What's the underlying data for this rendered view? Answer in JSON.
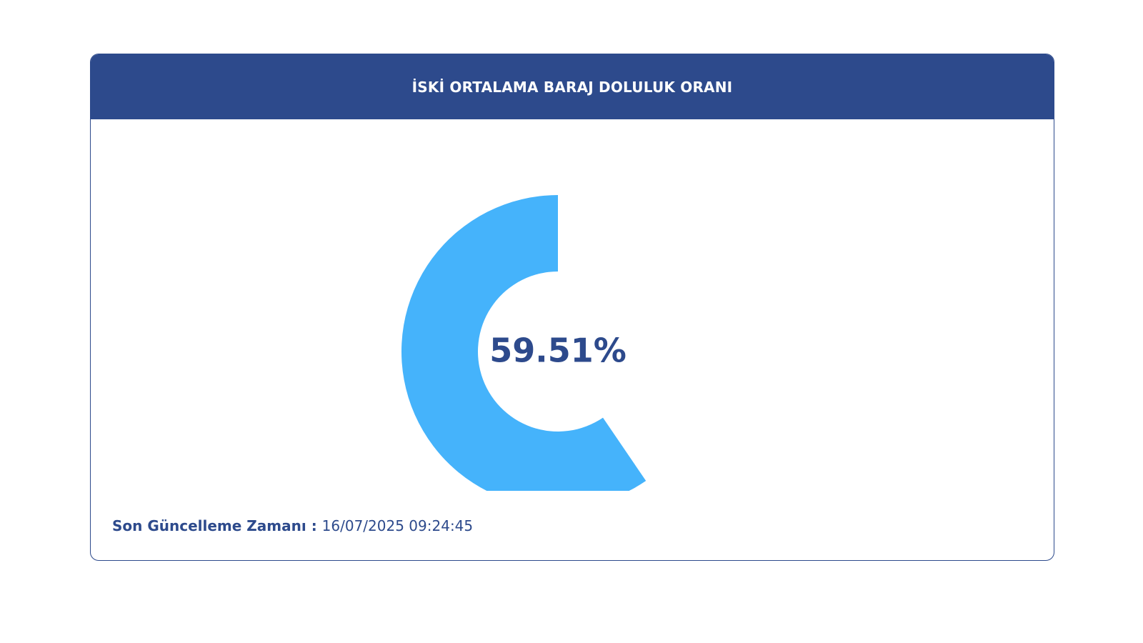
{
  "card": {
    "title": "İSKİ ORTALAMA BARAJ DOLULUK ORANI"
  },
  "footer": {
    "label": "Son Güncelleme Zamanı",
    "separator": " : ",
    "value": "16/07/2025 09:24:45"
  },
  "colors": {
    "header": "#2d4a8c",
    "gauge_fill": "#45b3fb",
    "text": "#2d4a8c"
  },
  "chart_data": {
    "type": "pie",
    "variant": "donut",
    "value": 59.51,
    "max": 100,
    "display_label": "59.51%",
    "direction": "counterclockwise-from-top"
  }
}
